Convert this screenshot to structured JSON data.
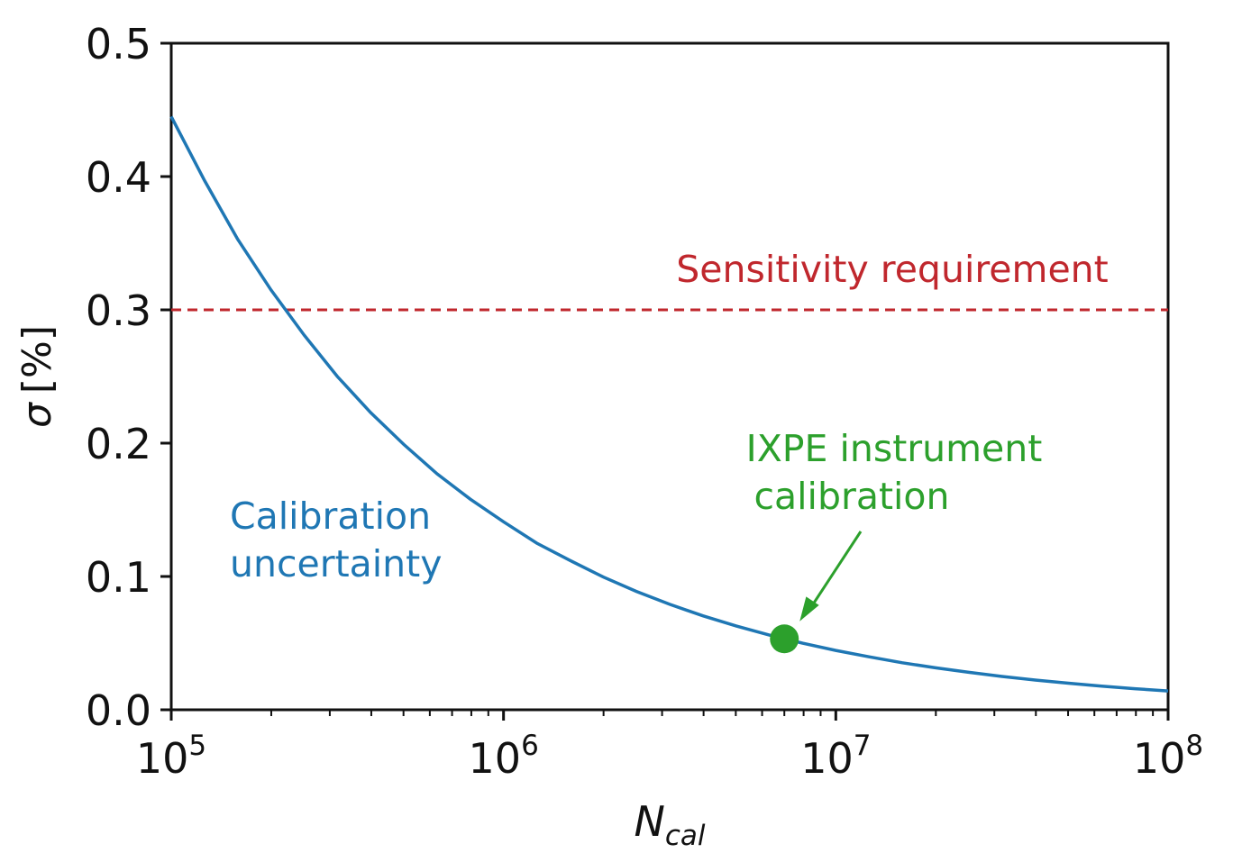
{
  "chart_data": {
    "type": "line",
    "title": "",
    "xscale": "log",
    "xlim": [
      100000,
      100000000
    ],
    "ylim": [
      0.0,
      0.5
    ],
    "xlabel": {
      "main": "N",
      "sub": "cal"
    },
    "ylabel": {
      "symbol": "σ",
      "unit": "[%]"
    },
    "x_ticks": [
      {
        "value": 100000,
        "base": "10",
        "exp": "5"
      },
      {
        "value": 1000000,
        "base": "10",
        "exp": "6"
      },
      {
        "value": 10000000,
        "base": "10",
        "exp": "7"
      },
      {
        "value": 100000000,
        "base": "10",
        "exp": "8"
      }
    ],
    "y_ticks": [
      {
        "value": 0.0,
        "label": "0.0"
      },
      {
        "value": 0.1,
        "label": "0.1"
      },
      {
        "value": 0.2,
        "label": "0.2"
      },
      {
        "value": 0.3,
        "label": "0.3"
      },
      {
        "value": 0.4,
        "label": "0.4"
      },
      {
        "value": 0.5,
        "label": "0.5"
      }
    ],
    "series": [
      {
        "name": "Calibration uncertainty",
        "color": "#1f77b4",
        "x": [
          100000,
          125893,
          158489,
          199526,
          251189,
          316228,
          398107,
          501187,
          630957,
          794328,
          1000000,
          1258925,
          1584893,
          1995262,
          2511886,
          3162278,
          3981072,
          5011872,
          6309573,
          7943282,
          10000000,
          12589254,
          15848932,
          19952623,
          25118864,
          31622777,
          39810717,
          50118723,
          63095734,
          79432823,
          100000000
        ],
        "y": [
          0.445,
          0.397,
          0.353,
          0.315,
          0.281,
          0.25,
          0.223,
          0.199,
          0.177,
          0.158,
          0.141,
          0.125,
          0.112,
          0.0996,
          0.0888,
          0.0791,
          0.0705,
          0.0629,
          0.056,
          0.0499,
          0.0445,
          0.0397,
          0.0353,
          0.0315,
          0.0281,
          0.025,
          0.0223,
          0.0199,
          0.0177,
          0.0158,
          0.0141
        ]
      }
    ],
    "hline": {
      "name": "Sensitivity requirement",
      "y": 0.3,
      "color": "#c0272d",
      "style": "dashed"
    },
    "marker": {
      "x": 7000000,
      "y": 0.0532,
      "color": "#2ca02c"
    },
    "annotations": {
      "sensitivity": {
        "text": "Sensitivity requirement",
        "color": "#c0272d"
      },
      "calibration_line1": "Calibration",
      "calibration_line2": "uncertainty",
      "calibration_color": "#1f77b4",
      "ixpe_line1": "IXPE instrument",
      "ixpe_line2": "calibration",
      "ixpe_color": "#2ca02c"
    }
  }
}
